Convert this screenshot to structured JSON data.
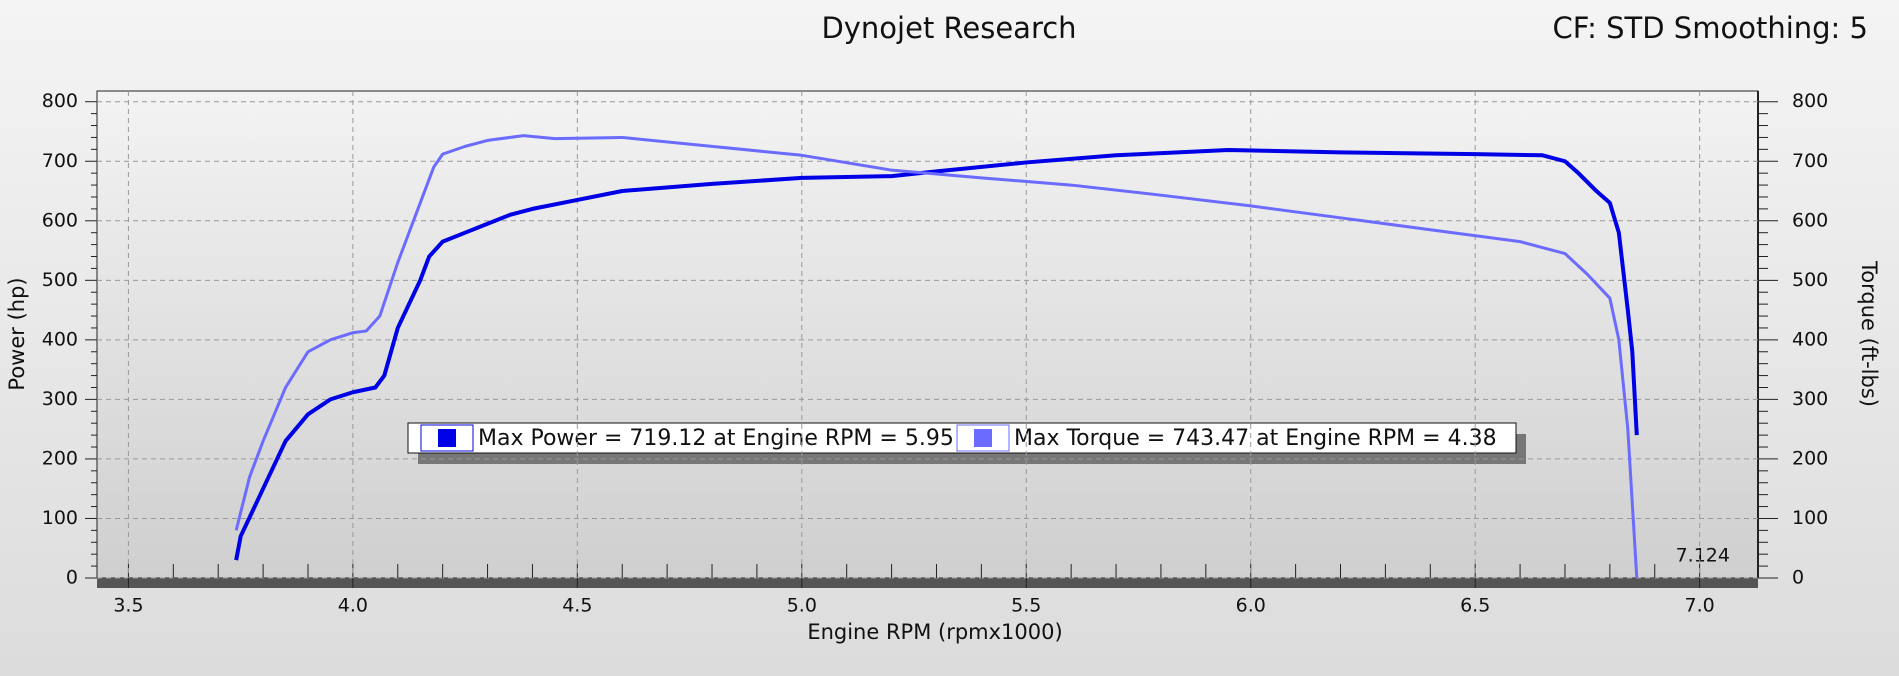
{
  "chart_data": {
    "type": "line",
    "title": "Dynojet Research",
    "subtitle": "CF: STD Smoothing: 5",
    "x_label": "Engine RPM (rpmx1000)",
    "y_label": "Power (hp)",
    "y2_label": "Torque (ft-lbs)",
    "annotation": "7.124",
    "xlim": [
      3.43,
      7.13
    ],
    "xticks": [
      3.5,
      {
        "value": 4,
        "label": "4.0"
      },
      4.5,
      {
        "value": 5,
        "label": "5.0"
      },
      5.5,
      {
        "value": 6,
        "label": "6.0"
      },
      6.5,
      {
        "value": 7,
        "label": "7.0"
      }
    ],
    "ylim": [
      0,
      818
    ],
    "yticks": [
      0,
      100,
      200,
      300,
      400,
      500,
      600,
      700,
      800
    ],
    "y2lim": [
      0,
      818
    ],
    "y2ticks": [
      0,
      100,
      200,
      300,
      400,
      500,
      600,
      700,
      800
    ],
    "grid": true,
    "series": [
      {
        "name": "Max Power = 719.12 at Engine RPM = 5.95",
        "color": "#0000e6",
        "x": [
          3.74,
          3.75,
          3.8,
          3.85,
          3.9,
          3.95,
          4.0,
          4.05,
          4.07,
          4.1,
          4.15,
          4.17,
          4.2,
          4.25,
          4.3,
          4.35,
          4.4,
          4.5,
          4.6,
          4.8,
          5.0,
          5.2,
          5.3,
          5.5,
          5.7,
          5.95,
          6.2,
          6.5,
          6.65,
          6.7,
          6.73,
          6.77,
          6.8,
          6.82,
          6.84,
          6.85,
          6.86
        ],
        "values": [
          30,
          70,
          150,
          230,
          275,
          300,
          312,
          320,
          340,
          420,
          500,
          540,
          565,
          580,
          595,
          610,
          620,
          635,
          650,
          662,
          672,
          675,
          683,
          698,
          710,
          719,
          715,
          712,
          710,
          700,
          680,
          650,
          630,
          580,
          450,
          380,
          240
        ]
      },
      {
        "name": "Max Torque = 743.47 at Engine RPM = 4.38",
        "color": "#6b6bff",
        "axis": "y2",
        "x": [
          3.74,
          3.77,
          3.8,
          3.85,
          3.9,
          3.95,
          4.0,
          4.03,
          4.06,
          4.1,
          4.15,
          4.18,
          4.2,
          4.25,
          4.3,
          4.38,
          4.45,
          4.6,
          4.8,
          5.0,
          5.2,
          5.4,
          5.6,
          5.8,
          6.0,
          6.2,
          6.4,
          6.6,
          6.7,
          6.75,
          6.8,
          6.82,
          6.84,
          6.86
        ],
        "values": [
          80,
          170,
          230,
          320,
          380,
          400,
          412,
          415,
          440,
          530,
          630,
          690,
          712,
          725,
          735,
          743,
          738,
          740,
          725,
          710,
          685,
          672,
          660,
          643,
          625,
          605,
          585,
          565,
          545,
          510,
          470,
          400,
          250,
          0
        ]
      }
    ]
  }
}
